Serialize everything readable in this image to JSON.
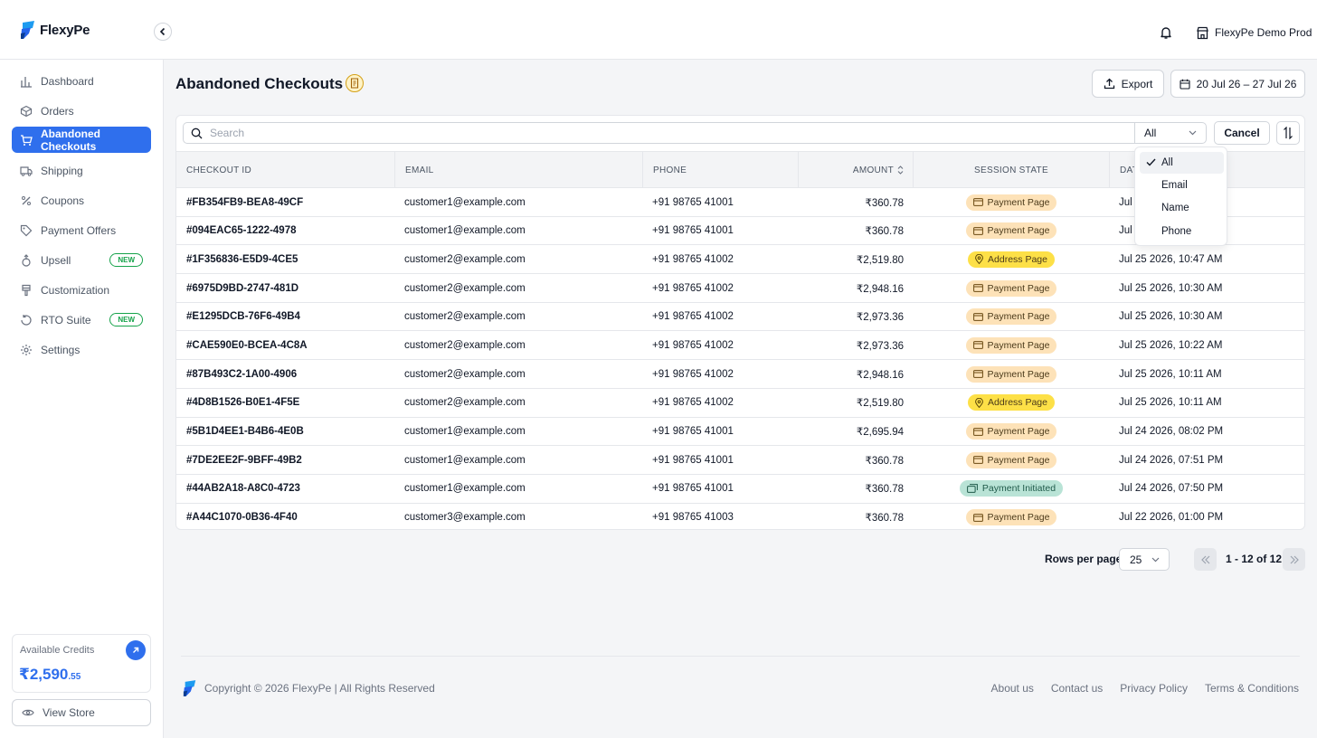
{
  "brand": {
    "name": "FlexyPe",
    "accent": "#2f6fed"
  },
  "header": {
    "store_name": "FlexyPe Demo Prod",
    "icons": [
      "bell-icon",
      "store-icon",
      "chevron-left-icon"
    ]
  },
  "sidebar": {
    "items": [
      {
        "label": "Dashboard",
        "icon": "bar-chart-icon"
      },
      {
        "label": "Orders",
        "icon": "box-icon"
      },
      {
        "label": "Abandoned Checkouts",
        "icon": "cart-icon",
        "active": true
      },
      {
        "label": "Shipping",
        "icon": "truck-icon"
      },
      {
        "label": "Coupons",
        "icon": "percent-icon"
      },
      {
        "label": "Payment Offers",
        "icon": "tag-icon"
      },
      {
        "label": "Upsell",
        "icon": "upsell-icon",
        "badge": "NEW"
      },
      {
        "label": "Customization",
        "icon": "brush-icon"
      },
      {
        "label": "RTO Suite",
        "icon": "return-icon",
        "badge": "NEW"
      },
      {
        "label": "Settings",
        "icon": "gear-icon"
      }
    ],
    "credits": {
      "label": "Available Credits",
      "amount": "₹2,590",
      "decimals": ".55"
    },
    "view_store": "View Store"
  },
  "page": {
    "title": "Abandoned Checkouts",
    "export_label": "Export",
    "date_range": "20 Jul 26 – 27 Jul 26"
  },
  "filter": {
    "search_placeholder": "Search",
    "selected": "All",
    "cancel_label": "Cancel",
    "options": [
      "All",
      "Email",
      "Name",
      "Phone"
    ]
  },
  "table": {
    "columns": [
      "CHECKOUT ID",
      "EMAIL",
      "PHONE",
      "AMOUNT",
      "SESSION STATE",
      "DAT"
    ],
    "rows": [
      {
        "id": "#FB354FB9-BEA8-49CF",
        "email": "customer1@example.com",
        "phone": "+91 98765 41001",
        "amount": "₹360.78",
        "state": "Payment Page",
        "kind": "payment",
        "date": "Jul"
      },
      {
        "id": "#094EAC65-1222-4978",
        "email": "customer1@example.com",
        "phone": "+91 98765 41001",
        "amount": "₹360.78",
        "state": "Payment Page",
        "kind": "payment",
        "date": "Jul"
      },
      {
        "id": "#1F356836-E5D9-4CE5",
        "email": "customer2@example.com",
        "phone": "+91 98765 41002",
        "amount": "₹2,519.80",
        "state": "Address Page",
        "kind": "address",
        "date": "Jul 25 2026, 10:47 AM"
      },
      {
        "id": "#6975D9BD-2747-481D",
        "email": "customer2@example.com",
        "phone": "+91 98765 41002",
        "amount": "₹2,948.16",
        "state": "Payment Page",
        "kind": "payment",
        "date": "Jul 25 2026, 10:30 AM"
      },
      {
        "id": "#E1295DCB-76F6-49B4",
        "email": "customer2@example.com",
        "phone": "+91 98765 41002",
        "amount": "₹2,973.36",
        "state": "Payment Page",
        "kind": "payment",
        "date": "Jul 25 2026, 10:30 AM"
      },
      {
        "id": "#CAE590E0-BCEA-4C8A",
        "email": "customer2@example.com",
        "phone": "+91 98765 41002",
        "amount": "₹2,973.36",
        "state": "Payment Page",
        "kind": "payment",
        "date": "Jul 25 2026, 10:22 AM"
      },
      {
        "id": "#87B493C2-1A00-4906",
        "email": "customer2@example.com",
        "phone": "+91 98765 41002",
        "amount": "₹2,948.16",
        "state": "Payment Page",
        "kind": "payment",
        "date": "Jul 25 2026, 10:11 AM"
      },
      {
        "id": "#4D8B1526-B0E1-4F5E",
        "email": "customer2@example.com",
        "phone": "+91 98765 41002",
        "amount": "₹2,519.80",
        "state": "Address Page",
        "kind": "address",
        "date": "Jul 25 2026, 10:11 AM"
      },
      {
        "id": "#5B1D4EE1-B4B6-4E0B",
        "email": "customer1@example.com",
        "phone": "+91 98765 41001",
        "amount": "₹2,695.94",
        "state": "Payment Page",
        "kind": "payment",
        "date": "Jul 24 2026, 08:02 PM"
      },
      {
        "id": "#7DE2EE2F-9BFF-49B2",
        "email": "customer1@example.com",
        "phone": "+91 98765 41001",
        "amount": "₹360.78",
        "state": "Payment Page",
        "kind": "payment",
        "date": "Jul 24 2026, 07:51 PM"
      },
      {
        "id": "#44AB2A18-A8C0-4723",
        "email": "customer1@example.com",
        "phone": "+91 98765 41001",
        "amount": "₹360.78",
        "state": "Payment Initiated",
        "kind": "initiated",
        "date": "Jul 24 2026, 07:50 PM"
      },
      {
        "id": "#A44C1070-0B36-4F40",
        "email": "customer3@example.com",
        "phone": "+91 98765 41003",
        "amount": "₹360.78",
        "state": "Payment Page",
        "kind": "payment",
        "date": "Jul 22 2026, 01:00 PM"
      }
    ]
  },
  "pagination": {
    "rows_per_page_label": "Rows per page",
    "rows_per_page": "25",
    "range": "1 - 12 of 12"
  },
  "footer": {
    "copyright": "Copyright © 2026 FlexyPe | All Rights Reserved",
    "links": [
      "About us",
      "Contact us",
      "Privacy Policy",
      "Terms & Conditions"
    ]
  }
}
